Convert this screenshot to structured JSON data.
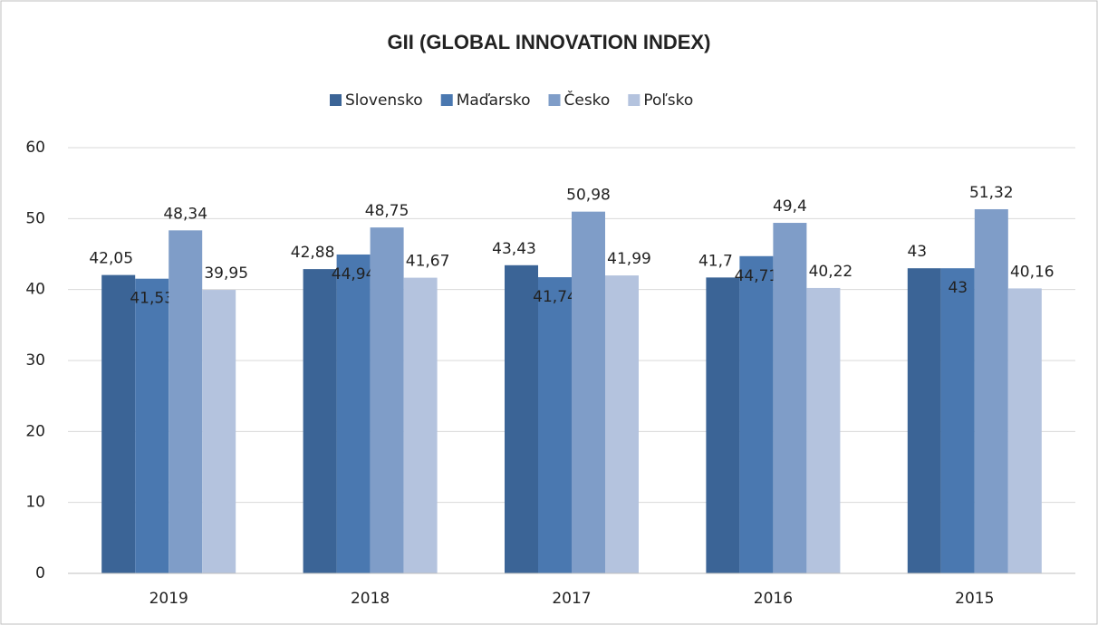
{
  "chart_data": {
    "type": "bar",
    "title": "GII (GLOBAL INNOVATION INDEX)",
    "categories": [
      "2019",
      "2018",
      "2017",
      "2016",
      "2015"
    ],
    "series": [
      {
        "name": "Slovensko",
        "color": "#3b6496",
        "values": [
          42.05,
          42.88,
          43.43,
          41.7,
          43
        ],
        "value_labels": [
          "42,05",
          "42,88",
          "43,43",
          "41,7",
          "43"
        ]
      },
      {
        "name": "Maďarsko",
        "color": "#4a78b0",
        "values": [
          41.53,
          44.94,
          41.74,
          44.71,
          43
        ],
        "value_labels": [
          "41,53",
          "44,94",
          "41,74",
          "44,71",
          "43"
        ]
      },
      {
        "name": "Česko",
        "color": "#7f9dc8",
        "values": [
          48.34,
          48.75,
          50.98,
          49.4,
          51.32
        ],
        "value_labels": [
          "48,34",
          "48,75",
          "50,98",
          "49,4",
          "51,32"
        ]
      },
      {
        "name": "Poľsko",
        "color": "#b4c3de",
        "values": [
          39.95,
          41.67,
          41.99,
          40.22,
          40.16
        ],
        "value_labels": [
          "39,95",
          "41,67",
          "41,99",
          "40,22",
          "40,16"
        ]
      }
    ],
    "ylim": [
      0,
      60
    ],
    "yticks": [
      0,
      10,
      20,
      30,
      40,
      50,
      60
    ],
    "grid": true,
    "legend": "top"
  }
}
